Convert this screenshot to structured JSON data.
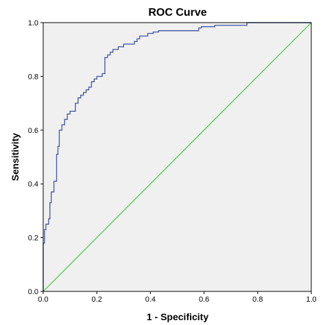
{
  "chart_data": {
    "type": "line",
    "title": "ROC Curve",
    "xlabel": "1 - Specificity",
    "ylabel": "Sensitivity",
    "xlim": [
      0,
      1
    ],
    "ylim": [
      0,
      1
    ],
    "x_ticks": [
      "0.0",
      "0.2",
      "0.4",
      "0.6",
      "0.8",
      "1.0"
    ],
    "y_ticks": [
      "0.0",
      "0.2",
      "0.4",
      "0.6",
      "0.8",
      "1.0"
    ],
    "grid": false,
    "legend": "none",
    "colors": {
      "plot_background": "#f0f0f0",
      "roc_line": "#4a5ea8",
      "reference_line": "#3cc83c",
      "frame": "#000000"
    },
    "series": [
      {
        "role": "roc",
        "x": [
          0.0,
          0.0,
          0.005,
          0.005,
          0.01,
          0.01,
          0.02,
          0.02,
          0.025,
          0.025,
          0.03,
          0.03,
          0.04,
          0.04,
          0.05,
          0.05,
          0.055,
          0.055,
          0.06,
          0.06,
          0.07,
          0.07,
          0.08,
          0.08,
          0.09,
          0.09,
          0.1,
          0.1,
          0.12,
          0.12,
          0.13,
          0.13,
          0.14,
          0.14,
          0.15,
          0.15,
          0.16,
          0.16,
          0.17,
          0.17,
          0.18,
          0.18,
          0.19,
          0.19,
          0.2,
          0.2,
          0.22,
          0.22,
          0.23,
          0.23,
          0.24,
          0.24,
          0.25,
          0.25,
          0.26,
          0.26,
          0.28,
          0.28,
          0.3,
          0.3,
          0.34,
          0.34,
          0.35,
          0.35,
          0.36,
          0.36,
          0.39,
          0.39,
          0.41,
          0.41,
          0.43,
          0.43,
          0.58,
          0.58,
          0.59,
          0.59,
          0.64,
          0.64,
          0.76,
          0.76,
          1.0
        ],
        "y": [
          0.0,
          0.18,
          0.18,
          0.23,
          0.23,
          0.25,
          0.25,
          0.27,
          0.27,
          0.33,
          0.33,
          0.37,
          0.37,
          0.41,
          0.41,
          0.51,
          0.51,
          0.54,
          0.54,
          0.6,
          0.6,
          0.62,
          0.62,
          0.64,
          0.64,
          0.66,
          0.66,
          0.67,
          0.67,
          0.7,
          0.7,
          0.72,
          0.72,
          0.73,
          0.73,
          0.74,
          0.74,
          0.75,
          0.75,
          0.76,
          0.76,
          0.78,
          0.78,
          0.79,
          0.79,
          0.8,
          0.8,
          0.81,
          0.81,
          0.87,
          0.87,
          0.88,
          0.88,
          0.89,
          0.89,
          0.9,
          0.9,
          0.91,
          0.91,
          0.92,
          0.92,
          0.93,
          0.93,
          0.94,
          0.94,
          0.95,
          0.95,
          0.96,
          0.96,
          0.965,
          0.965,
          0.97,
          0.97,
          0.98,
          0.98,
          0.985,
          0.985,
          0.99,
          0.99,
          1.0,
          1.0
        ]
      },
      {
        "role": "reference",
        "x": [
          0,
          1
        ],
        "y": [
          0,
          1
        ]
      }
    ]
  }
}
